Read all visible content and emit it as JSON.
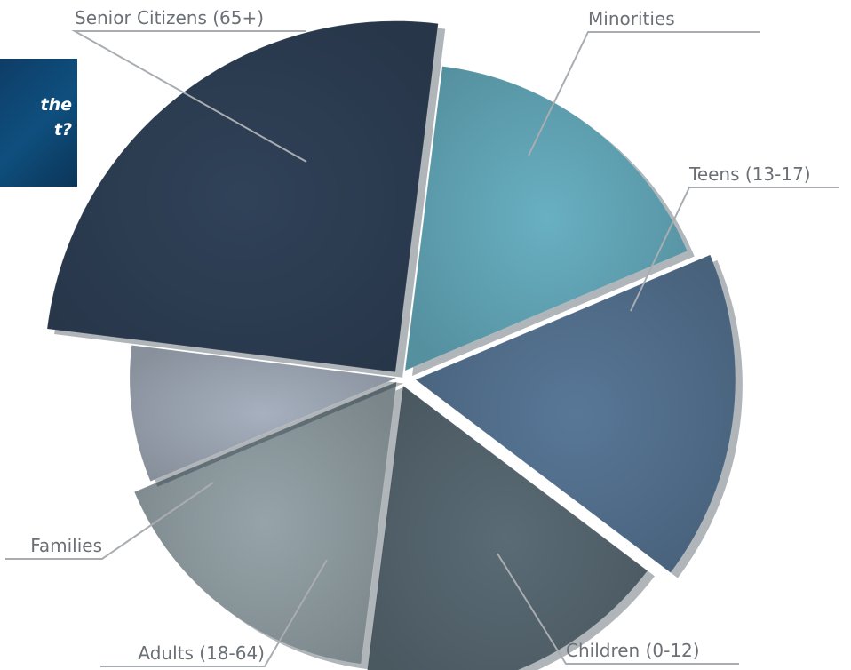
{
  "question": {
    "text": "the\nt?"
  },
  "chart_data": {
    "type": "pie",
    "title": "",
    "categories": [
      "Minorities",
      "Teens (13-17)",
      "Children (0-12)",
      "Adults (18-64)",
      "Families",
      "Senior Citizens (65+)"
    ],
    "values": [
      16.7,
      16.7,
      16.7,
      16.7,
      8.3,
      25.0
    ],
    "colors": [
      "#68b0c2",
      "#587797",
      "#5a6b75",
      "#96a4a9",
      "#a6b0be",
      "#304259"
    ],
    "legend": "none",
    "labels_style": "leader-lines"
  }
}
